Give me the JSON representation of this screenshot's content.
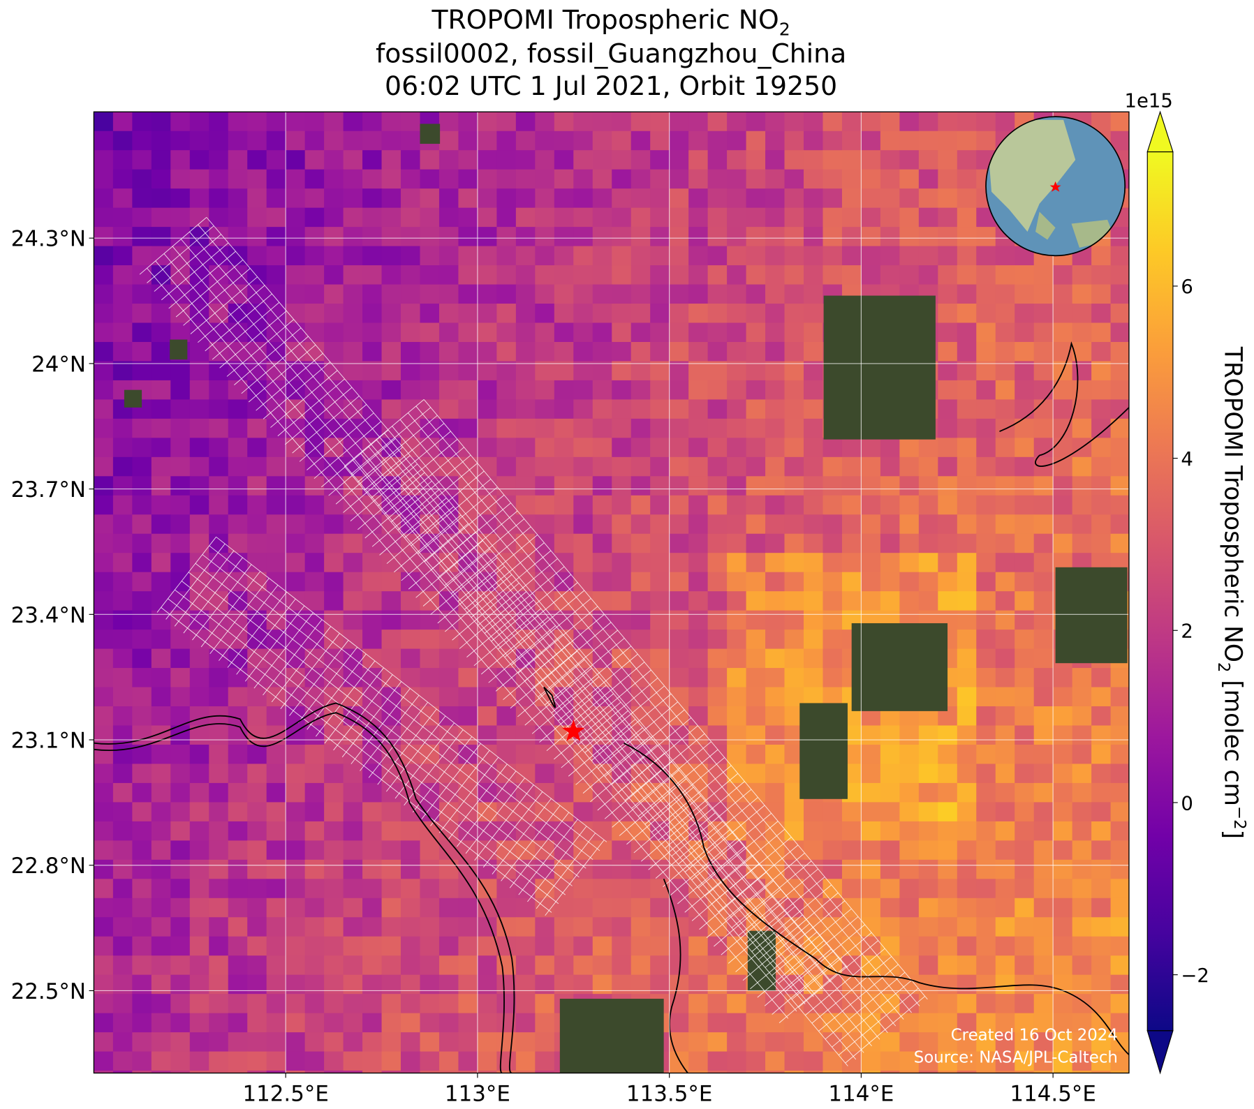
{
  "title": {
    "text": "TROPOMI Tropospheric NO",
    "subscript": "2"
  },
  "subtitle_lines": [
    "fossil0002, fossil_Guangzhou_China",
    "06:02 UTC 1 Jul 2021, Orbit 19250"
  ],
  "map": {
    "xlim": [
      112.0,
      114.698
    ],
    "ylim": [
      22.303,
      24.602
    ],
    "xticks": [
      {
        "value": 112.5,
        "label": "112.5°E"
      },
      {
        "value": 113,
        "label": "113°E"
      },
      {
        "value": 113.5,
        "label": "113.5°E"
      },
      {
        "value": 114,
        "label": "114°E"
      },
      {
        "value": 114.5,
        "label": "114.5°E"
      }
    ],
    "yticks": [
      {
        "value": 22.5,
        "label": "22.5°N"
      },
      {
        "value": 22.8,
        "label": "22.8°N"
      },
      {
        "value": 23.1,
        "label": "23.1°N"
      },
      {
        "value": 23.4,
        "label": "23.4°N"
      },
      {
        "value": 23.7,
        "label": "23.7°N"
      },
      {
        "value": 24,
        "label": "24°N"
      },
      {
        "value": 24.3,
        "label": "24.3°N"
      }
    ],
    "grid": true,
    "site": {
      "lon": 113.25,
      "lat": 23.12,
      "color": "#ff0000"
    }
  },
  "colorbar": {
    "lim": [
      -2.65,
      7.56
    ],
    "colormap": "plasma",
    "ticks": [
      {
        "value": -2,
        "label": "−2"
      },
      0,
      2,
      4,
      6
    ],
    "exponent_label": "1e15",
    "label": {
      "text": "TROPOMI Tropospheric NO",
      "subscript": "2",
      "unit": " [molec cm",
      "unit_superscript": "−2",
      "end": "]"
    }
  },
  "credits": [
    "Created 16 Oct 2024",
    "Source: NASA/JPL-Caltech"
  ]
}
